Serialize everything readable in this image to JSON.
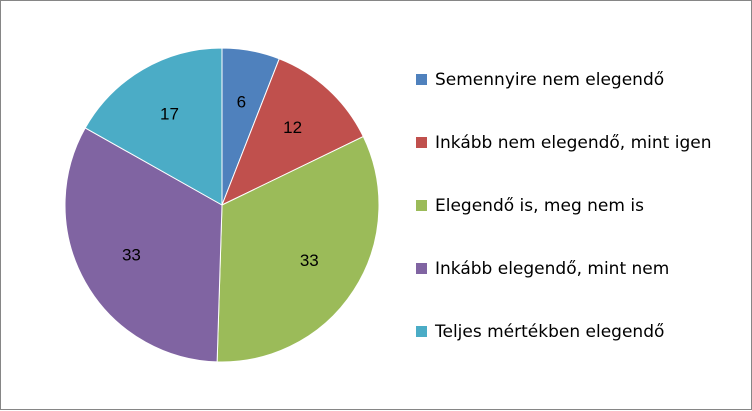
{
  "chart_data": {
    "type": "pie",
    "categories": [
      "Semennyire nem elegendő",
      "Inkább nem elegendő, mint igen",
      "Elegendő is, meg nem is",
      "Inkább elegendő, mint nem",
      "Teljes mértékben elegendő"
    ],
    "values": [
      6,
      12,
      33,
      33,
      17
    ],
    "data_labels": [
      "6",
      "12",
      "33",
      "33",
      "17"
    ],
    "colors": [
      "#4F81BD",
      "#C0504D",
      "#9BBB59",
      "#8064A2",
      "#4BACC6"
    ],
    "legend_position": "right",
    "start_angle_deg": 0,
    "direction": "clockwise"
  }
}
